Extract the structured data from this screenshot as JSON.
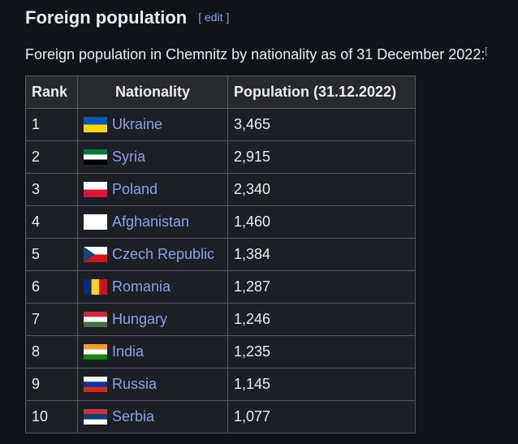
{
  "heading": {
    "title": "Foreign population",
    "edit_open": "[",
    "edit": "edit",
    "edit_close": "]"
  },
  "intro": {
    "text": "Foreign population in Chemnitz by nationality as of 31 December 2022:",
    "ref": "["
  },
  "table": {
    "headers": [
      "Rank",
      "Nationality",
      "Population (31.12.2022)"
    ],
    "rows": [
      [
        1,
        "Ukraine",
        "3,465"
      ],
      [
        2,
        "Syria",
        "2,915"
      ],
      [
        3,
        "Poland",
        "2,340"
      ],
      [
        4,
        "Afghanistan",
        "1,460"
      ],
      [
        5,
        "Czech Republic",
        "1,384"
      ],
      [
        6,
        "Romania",
        "1,287"
      ],
      [
        7,
        "Hungary",
        "1,246"
      ],
      [
        8,
        "India",
        "1,235"
      ],
      [
        9,
        "Russia",
        "1,145"
      ],
      [
        10,
        "Serbia",
        "1,077"
      ]
    ]
  }
}
